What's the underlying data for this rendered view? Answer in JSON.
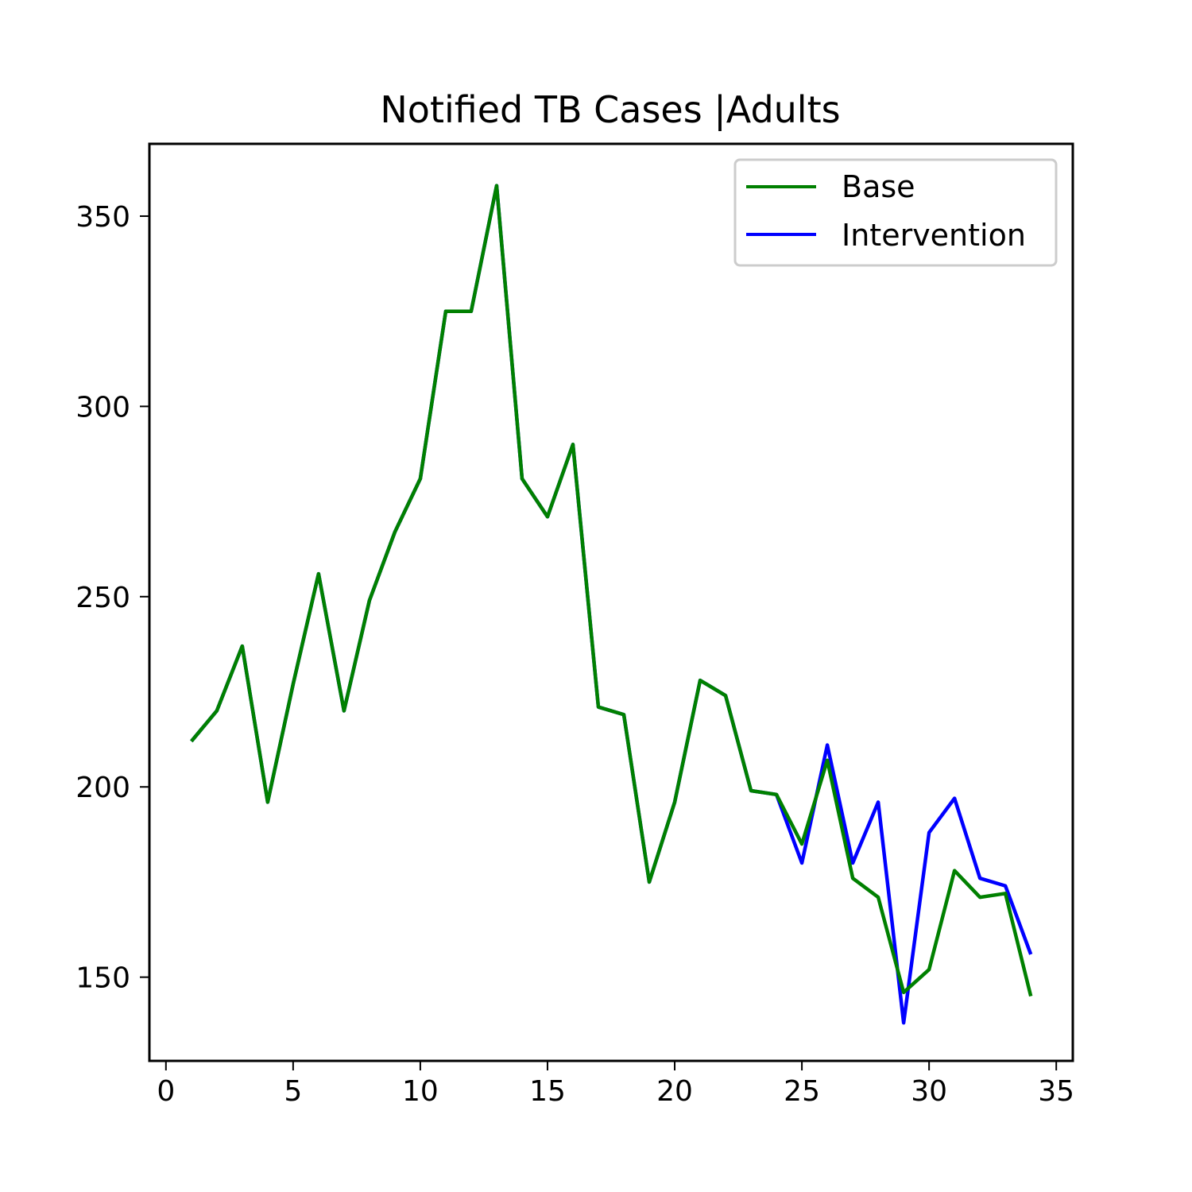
{
  "chart_data": {
    "type": "line",
    "title": "Notified TB Cases |Adults",
    "xlabel": "",
    "ylabel": "",
    "xlim": [
      -0.65,
      35.65
    ],
    "ylim": [
      128,
      369
    ],
    "xticks": [
      0,
      5,
      10,
      15,
      20,
      25,
      30,
      35
    ],
    "yticks": [
      150,
      200,
      250,
      300,
      350
    ],
    "grid": false,
    "legend_position": "top-right",
    "x": [
      1,
      2,
      3,
      4,
      5,
      6,
      7,
      8,
      9,
      10,
      11,
      12,
      13,
      14,
      15,
      16,
      17,
      18,
      19,
      20,
      21,
      22,
      23,
      24,
      25,
      26,
      27,
      28,
      29,
      30,
      31,
      32,
      33,
      34
    ],
    "series": [
      {
        "name": "Base",
        "color": "#008000",
        "values": [
          212,
          220,
          237,
          196,
          227,
          256,
          220,
          249,
          267,
          281,
          325,
          325,
          358,
          281,
          271,
          290,
          221,
          219,
          175,
          196,
          228,
          224,
          199,
          198,
          185,
          207,
          176,
          171,
          146,
          152,
          178,
          171,
          172,
          145
        ]
      },
      {
        "name": "Intervention",
        "color": "#0000ff",
        "values": [
          212,
          220,
          237,
          196,
          227,
          256,
          220,
          249,
          267,
          281,
          325,
          325,
          358,
          281,
          271,
          290,
          221,
          219,
          175,
          196,
          228,
          224,
          199,
          198,
          180,
          211,
          180,
          196,
          138,
          188,
          197,
          176,
          174,
          156
        ]
      }
    ]
  }
}
